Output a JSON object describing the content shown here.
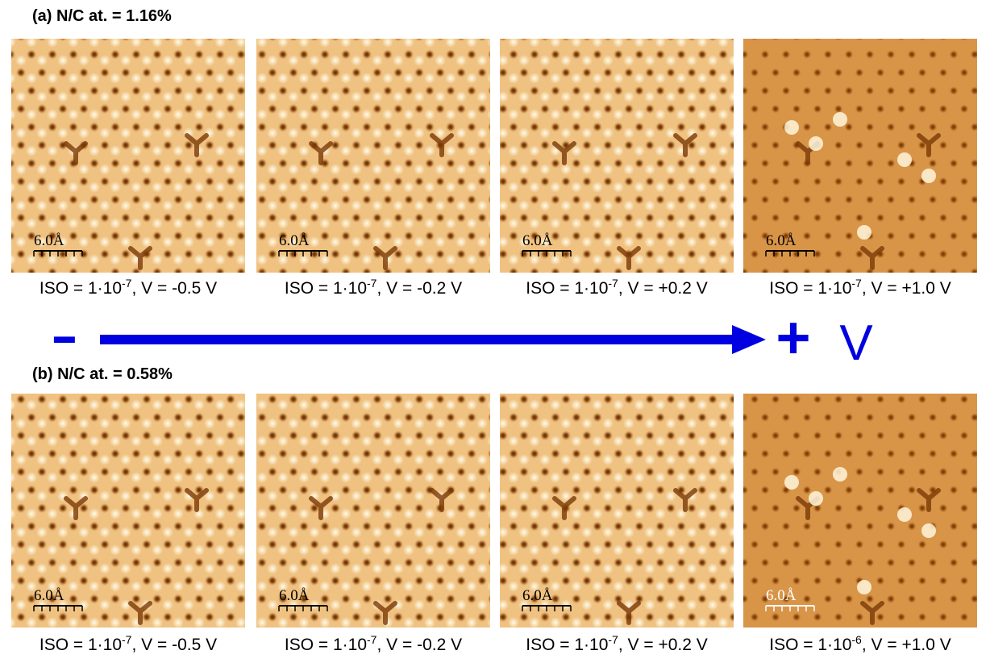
{
  "rows": [
    {
      "label": "(a) N/C at. = 1.16%",
      "images": [
        {
          "scale": "6.0Å",
          "iso": "ISO = 1·10",
          "exp": "-7",
          "bias": ", V = -0.5 V"
        },
        {
          "scale": "6.0Å",
          "iso": "ISO = 1·10",
          "exp": "-7",
          "bias": ", V = -0.2 V"
        },
        {
          "scale": "6.0Å",
          "iso": "ISO = 1·10",
          "exp": "-7",
          "bias": ", V = +0.2 V"
        },
        {
          "scale": "6.0Å",
          "iso": "ISO = 1·10",
          "exp": "-7",
          "bias": ", V = +1.0 V"
        }
      ]
    },
    {
      "label": "(b) N/C at. = 0.58%",
      "images": [
        {
          "scale": "6.0Å",
          "iso": "ISO = 1·10",
          "exp": "-7",
          "bias": ", V = -0.5 V"
        },
        {
          "scale": "6.0Å",
          "iso": "ISO = 1·10",
          "exp": "-7",
          "bias": ", V = -0.2 V"
        },
        {
          "scale": "6.0Å",
          "iso": "ISO = 1·10",
          "exp": "-7",
          "bias": ", V = +0.2 V"
        },
        {
          "scale": "6.0Å",
          "iso": "ISO = 1·10",
          "exp": "-6",
          "bias": ", V = +1.0 V"
        }
      ]
    }
  ],
  "arrow": {
    "minus": "-",
    "plus": "+",
    "unit": "V"
  }
}
